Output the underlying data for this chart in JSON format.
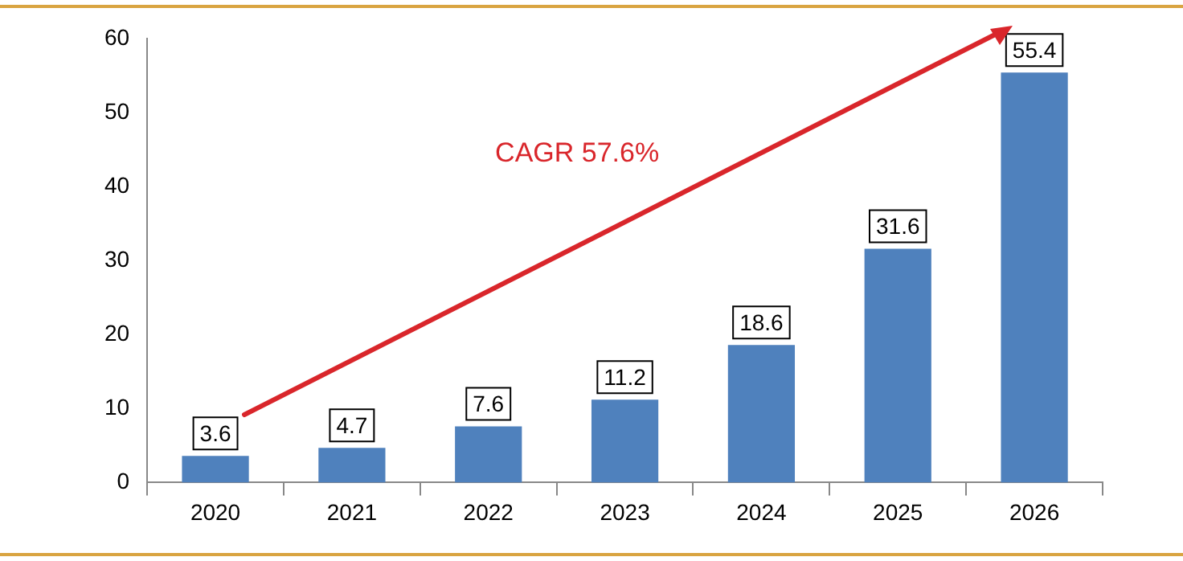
{
  "chart_data": {
    "type": "bar",
    "categories": [
      "2020",
      "2021",
      "2022",
      "2023",
      "2024",
      "2025",
      "2026"
    ],
    "values": [
      3.6,
      4.7,
      7.6,
      11.2,
      18.6,
      31.6,
      55.4
    ],
    "color": "#4f81bd",
    "ylim": [
      0,
      60
    ],
    "yticks": [
      0,
      10,
      20,
      30,
      40,
      50,
      60
    ],
    "data_labels": true,
    "annotations": [
      "CAGR 57.6%"
    ]
  }
}
